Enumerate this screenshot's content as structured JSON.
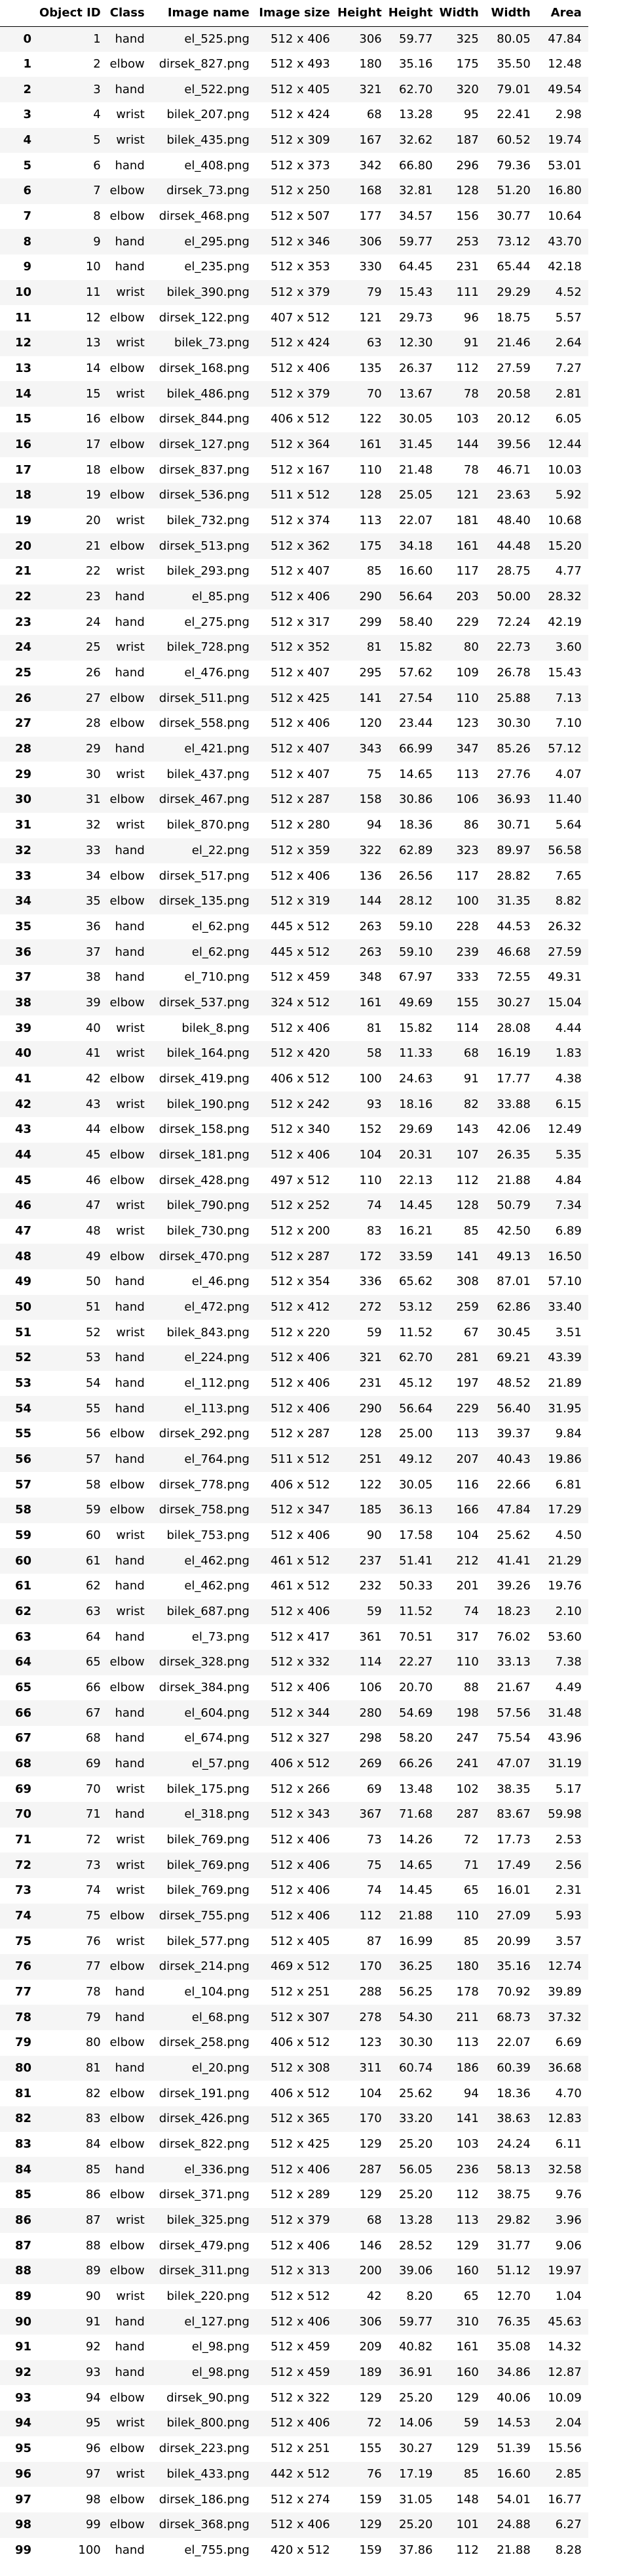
{
  "table": {
    "columns": [
      "Object ID",
      "Class",
      "Image name",
      "Image size",
      "Height",
      "Height",
      "Width",
      "Width",
      "Area"
    ],
    "rows": [
      [
        "0",
        "1",
        "hand",
        "el_525.png",
        "512 x 406",
        "306",
        "59.77",
        "325",
        "80.05",
        "47.84"
      ],
      [
        "1",
        "2",
        "elbow",
        "dirsek_827.png",
        "512 x 493",
        "180",
        "35.16",
        "175",
        "35.50",
        "12.48"
      ],
      [
        "2",
        "3",
        "hand",
        "el_522.png",
        "512 x 405",
        "321",
        "62.70",
        "320",
        "79.01",
        "49.54"
      ],
      [
        "3",
        "4",
        "wrist",
        "bilek_207.png",
        "512 x 424",
        "68",
        "13.28",
        "95",
        "22.41",
        "2.98"
      ],
      [
        "4",
        "5",
        "wrist",
        "bilek_435.png",
        "512 x 309",
        "167",
        "32.62",
        "187",
        "60.52",
        "19.74"
      ],
      [
        "5",
        "6",
        "hand",
        "el_408.png",
        "512 x 373",
        "342",
        "66.80",
        "296",
        "79.36",
        "53.01"
      ],
      [
        "6",
        "7",
        "elbow",
        "dirsek_73.png",
        "512 x 250",
        "168",
        "32.81",
        "128",
        "51.20",
        "16.80"
      ],
      [
        "7",
        "8",
        "elbow",
        "dirsek_468.png",
        "512 x 507",
        "177",
        "34.57",
        "156",
        "30.77",
        "10.64"
      ],
      [
        "8",
        "9",
        "hand",
        "el_295.png",
        "512 x 346",
        "306",
        "59.77",
        "253",
        "73.12",
        "43.70"
      ],
      [
        "9",
        "10",
        "hand",
        "el_235.png",
        "512 x 353",
        "330",
        "64.45",
        "231",
        "65.44",
        "42.18"
      ],
      [
        "10",
        "11",
        "wrist",
        "bilek_390.png",
        "512 x 379",
        "79",
        "15.43",
        "111",
        "29.29",
        "4.52"
      ],
      [
        "11",
        "12",
        "elbow",
        "dirsek_122.png",
        "407 x 512",
        "121",
        "29.73",
        "96",
        "18.75",
        "5.57"
      ],
      [
        "12",
        "13",
        "wrist",
        "bilek_73.png",
        "512 x 424",
        "63",
        "12.30",
        "91",
        "21.46",
        "2.64"
      ],
      [
        "13",
        "14",
        "elbow",
        "dirsek_168.png",
        "512 x 406",
        "135",
        "26.37",
        "112",
        "27.59",
        "7.27"
      ],
      [
        "14",
        "15",
        "wrist",
        "bilek_486.png",
        "512 x 379",
        "70",
        "13.67",
        "78",
        "20.58",
        "2.81"
      ],
      [
        "15",
        "16",
        "elbow",
        "dirsek_844.png",
        "406 x 512",
        "122",
        "30.05",
        "103",
        "20.12",
        "6.05"
      ],
      [
        "16",
        "17",
        "elbow",
        "dirsek_127.png",
        "512 x 364",
        "161",
        "31.45",
        "144",
        "39.56",
        "12.44"
      ],
      [
        "17",
        "18",
        "elbow",
        "dirsek_837.png",
        "512 x 167",
        "110",
        "21.48",
        "78",
        "46.71",
        "10.03"
      ],
      [
        "18",
        "19",
        "elbow",
        "dirsek_536.png",
        "511 x 512",
        "128",
        "25.05",
        "121",
        "23.63",
        "5.92"
      ],
      [
        "19",
        "20",
        "wrist",
        "bilek_732.png",
        "512 x 374",
        "113",
        "22.07",
        "181",
        "48.40",
        "10.68"
      ],
      [
        "20",
        "21",
        "elbow",
        "dirsek_513.png",
        "512 x 362",
        "175",
        "34.18",
        "161",
        "44.48",
        "15.20"
      ],
      [
        "21",
        "22",
        "wrist",
        "bilek_293.png",
        "512 x 407",
        "85",
        "16.60",
        "117",
        "28.75",
        "4.77"
      ],
      [
        "22",
        "23",
        "hand",
        "el_85.png",
        "512 x 406",
        "290",
        "56.64",
        "203",
        "50.00",
        "28.32"
      ],
      [
        "23",
        "24",
        "hand",
        "el_275.png",
        "512 x 317",
        "299",
        "58.40",
        "229",
        "72.24",
        "42.19"
      ],
      [
        "24",
        "25",
        "wrist",
        "bilek_728.png",
        "512 x 352",
        "81",
        "15.82",
        "80",
        "22.73",
        "3.60"
      ],
      [
        "25",
        "26",
        "hand",
        "el_476.png",
        "512 x 407",
        "295",
        "57.62",
        "109",
        "26.78",
        "15.43"
      ],
      [
        "26",
        "27",
        "elbow",
        "dirsek_511.png",
        "512 x 425",
        "141",
        "27.54",
        "110",
        "25.88",
        "7.13"
      ],
      [
        "27",
        "28",
        "elbow",
        "dirsek_558.png",
        "512 x 406",
        "120",
        "23.44",
        "123",
        "30.30",
        "7.10"
      ],
      [
        "28",
        "29",
        "hand",
        "el_421.png",
        "512 x 407",
        "343",
        "66.99",
        "347",
        "85.26",
        "57.12"
      ],
      [
        "29",
        "30",
        "wrist",
        "bilek_437.png",
        "512 x 407",
        "75",
        "14.65",
        "113",
        "27.76",
        "4.07"
      ],
      [
        "30",
        "31",
        "elbow",
        "dirsek_467.png",
        "512 x 287",
        "158",
        "30.86",
        "106",
        "36.93",
        "11.40"
      ],
      [
        "31",
        "32",
        "wrist",
        "bilek_870.png",
        "512 x 280",
        "94",
        "18.36",
        "86",
        "30.71",
        "5.64"
      ],
      [
        "32",
        "33",
        "hand",
        "el_22.png",
        "512 x 359",
        "322",
        "62.89",
        "323",
        "89.97",
        "56.58"
      ],
      [
        "33",
        "34",
        "elbow",
        "dirsek_517.png",
        "512 x 406",
        "136",
        "26.56",
        "117",
        "28.82",
        "7.65"
      ],
      [
        "34",
        "35",
        "elbow",
        "dirsek_135.png",
        "512 x 319",
        "144",
        "28.12",
        "100",
        "31.35",
        "8.82"
      ],
      [
        "35",
        "36",
        "hand",
        "el_62.png",
        "445 x 512",
        "263",
        "59.10",
        "228",
        "44.53",
        "26.32"
      ],
      [
        "36",
        "37",
        "hand",
        "el_62.png",
        "445 x 512",
        "263",
        "59.10",
        "239",
        "46.68",
        "27.59"
      ],
      [
        "37",
        "38",
        "hand",
        "el_710.png",
        "512 x 459",
        "348",
        "67.97",
        "333",
        "72.55",
        "49.31"
      ],
      [
        "38",
        "39",
        "elbow",
        "dirsek_537.png",
        "324 x 512",
        "161",
        "49.69",
        "155",
        "30.27",
        "15.04"
      ],
      [
        "39",
        "40",
        "wrist",
        "bilek_8.png",
        "512 x 406",
        "81",
        "15.82",
        "114",
        "28.08",
        "4.44"
      ],
      [
        "40",
        "41",
        "wrist",
        "bilek_164.png",
        "512 x 420",
        "58",
        "11.33",
        "68",
        "16.19",
        "1.83"
      ],
      [
        "41",
        "42",
        "elbow",
        "dirsek_419.png",
        "406 x 512",
        "100",
        "24.63",
        "91",
        "17.77",
        "4.38"
      ],
      [
        "42",
        "43",
        "wrist",
        "bilek_190.png",
        "512 x 242",
        "93",
        "18.16",
        "82",
        "33.88",
        "6.15"
      ],
      [
        "43",
        "44",
        "elbow",
        "dirsek_158.png",
        "512 x 340",
        "152",
        "29.69",
        "143",
        "42.06",
        "12.49"
      ],
      [
        "44",
        "45",
        "elbow",
        "dirsek_181.png",
        "512 x 406",
        "104",
        "20.31",
        "107",
        "26.35",
        "5.35"
      ],
      [
        "45",
        "46",
        "elbow",
        "dirsek_428.png",
        "497 x 512",
        "110",
        "22.13",
        "112",
        "21.88",
        "4.84"
      ],
      [
        "46",
        "47",
        "wrist",
        "bilek_790.png",
        "512 x 252",
        "74",
        "14.45",
        "128",
        "50.79",
        "7.34"
      ],
      [
        "47",
        "48",
        "wrist",
        "bilek_730.png",
        "512 x 200",
        "83",
        "16.21",
        "85",
        "42.50",
        "6.89"
      ],
      [
        "48",
        "49",
        "elbow",
        "dirsek_470.png",
        "512 x 287",
        "172",
        "33.59",
        "141",
        "49.13",
        "16.50"
      ],
      [
        "49",
        "50",
        "hand",
        "el_46.png",
        "512 x 354",
        "336",
        "65.62",
        "308",
        "87.01",
        "57.10"
      ],
      [
        "50",
        "51",
        "hand",
        "el_472.png",
        "512 x 412",
        "272",
        "53.12",
        "259",
        "62.86",
        "33.40"
      ],
      [
        "51",
        "52",
        "wrist",
        "bilek_843.png",
        "512 x 220",
        "59",
        "11.52",
        "67",
        "30.45",
        "3.51"
      ],
      [
        "52",
        "53",
        "hand",
        "el_224.png",
        "512 x 406",
        "321",
        "62.70",
        "281",
        "69.21",
        "43.39"
      ],
      [
        "53",
        "54",
        "hand",
        "el_112.png",
        "512 x 406",
        "231",
        "45.12",
        "197",
        "48.52",
        "21.89"
      ],
      [
        "54",
        "55",
        "hand",
        "el_113.png",
        "512 x 406",
        "290",
        "56.64",
        "229",
        "56.40",
        "31.95"
      ],
      [
        "55",
        "56",
        "elbow",
        "dirsek_292.png",
        "512 x 287",
        "128",
        "25.00",
        "113",
        "39.37",
        "9.84"
      ],
      [
        "56",
        "57",
        "hand",
        "el_764.png",
        "511 x 512",
        "251",
        "49.12",
        "207",
        "40.43",
        "19.86"
      ],
      [
        "57",
        "58",
        "elbow",
        "dirsek_778.png",
        "406 x 512",
        "122",
        "30.05",
        "116",
        "22.66",
        "6.81"
      ],
      [
        "58",
        "59",
        "elbow",
        "dirsek_758.png",
        "512 x 347",
        "185",
        "36.13",
        "166",
        "47.84",
        "17.29"
      ],
      [
        "59",
        "60",
        "wrist",
        "bilek_753.png",
        "512 x 406",
        "90",
        "17.58",
        "104",
        "25.62",
        "4.50"
      ],
      [
        "60",
        "61",
        "hand",
        "el_462.png",
        "461 x 512",
        "237",
        "51.41",
        "212",
        "41.41",
        "21.29"
      ],
      [
        "61",
        "62",
        "hand",
        "el_462.png",
        "461 x 512",
        "232",
        "50.33",
        "201",
        "39.26",
        "19.76"
      ],
      [
        "62",
        "63",
        "wrist",
        "bilek_687.png",
        "512 x 406",
        "59",
        "11.52",
        "74",
        "18.23",
        "2.10"
      ],
      [
        "63",
        "64",
        "hand",
        "el_73.png",
        "512 x 417",
        "361",
        "70.51",
        "317",
        "76.02",
        "53.60"
      ],
      [
        "64",
        "65",
        "elbow",
        "dirsek_328.png",
        "512 x 332",
        "114",
        "22.27",
        "110",
        "33.13",
        "7.38"
      ],
      [
        "65",
        "66",
        "elbow",
        "dirsek_384.png",
        "512 x 406",
        "106",
        "20.70",
        "88",
        "21.67",
        "4.49"
      ],
      [
        "66",
        "67",
        "hand",
        "el_604.png",
        "512 x 344",
        "280",
        "54.69",
        "198",
        "57.56",
        "31.48"
      ],
      [
        "67",
        "68",
        "hand",
        "el_674.png",
        "512 x 327",
        "298",
        "58.20",
        "247",
        "75.54",
        "43.96"
      ],
      [
        "68",
        "69",
        "hand",
        "el_57.png",
        "406 x 512",
        "269",
        "66.26",
        "241",
        "47.07",
        "31.19"
      ],
      [
        "69",
        "70",
        "wrist",
        "bilek_175.png",
        "512 x 266",
        "69",
        "13.48",
        "102",
        "38.35",
        "5.17"
      ],
      [
        "70",
        "71",
        "hand",
        "el_318.png",
        "512 x 343",
        "367",
        "71.68",
        "287",
        "83.67",
        "59.98"
      ],
      [
        "71",
        "72",
        "wrist",
        "bilek_769.png",
        "512 x 406",
        "73",
        "14.26",
        "72",
        "17.73",
        "2.53"
      ],
      [
        "72",
        "73",
        "wrist",
        "bilek_769.png",
        "512 x 406",
        "75",
        "14.65",
        "71",
        "17.49",
        "2.56"
      ],
      [
        "73",
        "74",
        "wrist",
        "bilek_769.png",
        "512 x 406",
        "74",
        "14.45",
        "65",
        "16.01",
        "2.31"
      ],
      [
        "74",
        "75",
        "elbow",
        "dirsek_755.png",
        "512 x 406",
        "112",
        "21.88",
        "110",
        "27.09",
        "5.93"
      ],
      [
        "75",
        "76",
        "wrist",
        "bilek_577.png",
        "512 x 405",
        "87",
        "16.99",
        "85",
        "20.99",
        "3.57"
      ],
      [
        "76",
        "77",
        "elbow",
        "dirsek_214.png",
        "469 x 512",
        "170",
        "36.25",
        "180",
        "35.16",
        "12.74"
      ],
      [
        "77",
        "78",
        "hand",
        "el_104.png",
        "512 x 251",
        "288",
        "56.25",
        "178",
        "70.92",
        "39.89"
      ],
      [
        "78",
        "79",
        "hand",
        "el_68.png",
        "512 x 307",
        "278",
        "54.30",
        "211",
        "68.73",
        "37.32"
      ],
      [
        "79",
        "80",
        "elbow",
        "dirsek_258.png",
        "406 x 512",
        "123",
        "30.30",
        "113",
        "22.07",
        "6.69"
      ],
      [
        "80",
        "81",
        "hand",
        "el_20.png",
        "512 x 308",
        "311",
        "60.74",
        "186",
        "60.39",
        "36.68"
      ],
      [
        "81",
        "82",
        "elbow",
        "dirsek_191.png",
        "406 x 512",
        "104",
        "25.62",
        "94",
        "18.36",
        "4.70"
      ],
      [
        "82",
        "83",
        "elbow",
        "dirsek_426.png",
        "512 x 365",
        "170",
        "33.20",
        "141",
        "38.63",
        "12.83"
      ],
      [
        "83",
        "84",
        "elbow",
        "dirsek_822.png",
        "512 x 425",
        "129",
        "25.20",
        "103",
        "24.24",
        "6.11"
      ],
      [
        "84",
        "85",
        "hand",
        "el_336.png",
        "512 x 406",
        "287",
        "56.05",
        "236",
        "58.13",
        "32.58"
      ],
      [
        "85",
        "86",
        "elbow",
        "dirsek_371.png",
        "512 x 289",
        "129",
        "25.20",
        "112",
        "38.75",
        "9.76"
      ],
      [
        "86",
        "87",
        "wrist",
        "bilek_325.png",
        "512 x 379",
        "68",
        "13.28",
        "113",
        "29.82",
        "3.96"
      ],
      [
        "87",
        "88",
        "elbow",
        "dirsek_479.png",
        "512 x 406",
        "146",
        "28.52",
        "129",
        "31.77",
        "9.06"
      ],
      [
        "88",
        "89",
        "elbow",
        "dirsek_311.png",
        "512 x 313",
        "200",
        "39.06",
        "160",
        "51.12",
        "19.97"
      ],
      [
        "89",
        "90",
        "wrist",
        "bilek_220.png",
        "512 x 512",
        "42",
        "8.20",
        "65",
        "12.70",
        "1.04"
      ],
      [
        "90",
        "91",
        "hand",
        "el_127.png",
        "512 x 406",
        "306",
        "59.77",
        "310",
        "76.35",
        "45.63"
      ],
      [
        "91",
        "92",
        "hand",
        "el_98.png",
        "512 x 459",
        "209",
        "40.82",
        "161",
        "35.08",
        "14.32"
      ],
      [
        "92",
        "93",
        "hand",
        "el_98.png",
        "512 x 459",
        "189",
        "36.91",
        "160",
        "34.86",
        "12.87"
      ],
      [
        "93",
        "94",
        "elbow",
        "dirsek_90.png",
        "512 x 322",
        "129",
        "25.20",
        "129",
        "40.06",
        "10.09"
      ],
      [
        "94",
        "95",
        "wrist",
        "bilek_800.png",
        "512 x 406",
        "72",
        "14.06",
        "59",
        "14.53",
        "2.04"
      ],
      [
        "95",
        "96",
        "elbow",
        "dirsek_223.png",
        "512 x 251",
        "155",
        "30.27",
        "129",
        "51.39",
        "15.56"
      ],
      [
        "96",
        "97",
        "wrist",
        "bilek_433.png",
        "442 x 512",
        "76",
        "17.19",
        "85",
        "16.60",
        "2.85"
      ],
      [
        "97",
        "98",
        "elbow",
        "dirsek_186.png",
        "512 x 274",
        "159",
        "31.05",
        "148",
        "54.01",
        "16.77"
      ],
      [
        "98",
        "99",
        "elbow",
        "dirsek_368.png",
        "512 x 406",
        "129",
        "25.20",
        "101",
        "24.88",
        "6.27"
      ],
      [
        "99",
        "100",
        "hand",
        "el_755.png",
        "420 x 512",
        "159",
        "37.86",
        "112",
        "21.88",
        "8.28"
      ]
    ]
  }
}
